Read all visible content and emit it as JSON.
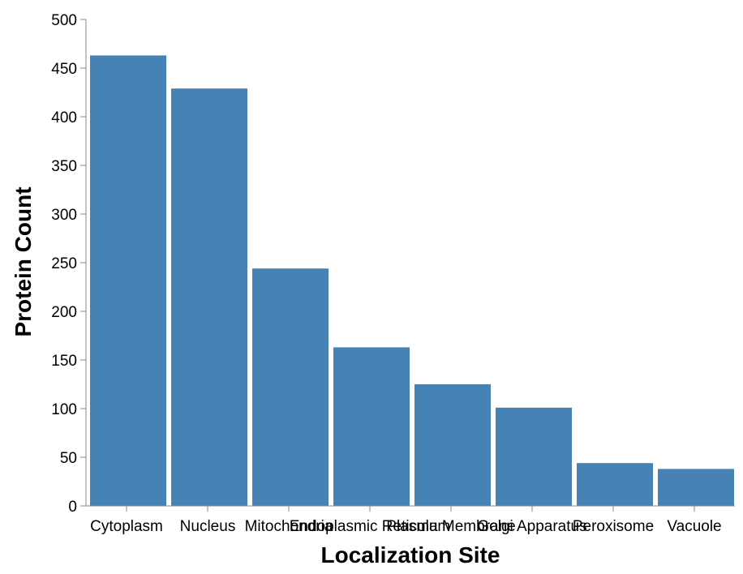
{
  "chart_data": {
    "type": "bar",
    "title": "",
    "xlabel": "Localization Site",
    "ylabel": "Protein Count",
    "categories": [
      "Cytoplasm",
      "Nucleus",
      "Mitochondria",
      "Endoplasmic Reticulum",
      "Plasma Membrane",
      "Golgi Apparatus",
      "Peroxisome",
      "Vacuole"
    ],
    "values": [
      463,
      429,
      244,
      163,
      125,
      101,
      44,
      38
    ],
    "ylim": [
      0,
      500
    ],
    "yticks": [
      0,
      50,
      100,
      150,
      200,
      250,
      300,
      350,
      400,
      450,
      500
    ],
    "grid": false,
    "bar_color": "#4682b4"
  }
}
